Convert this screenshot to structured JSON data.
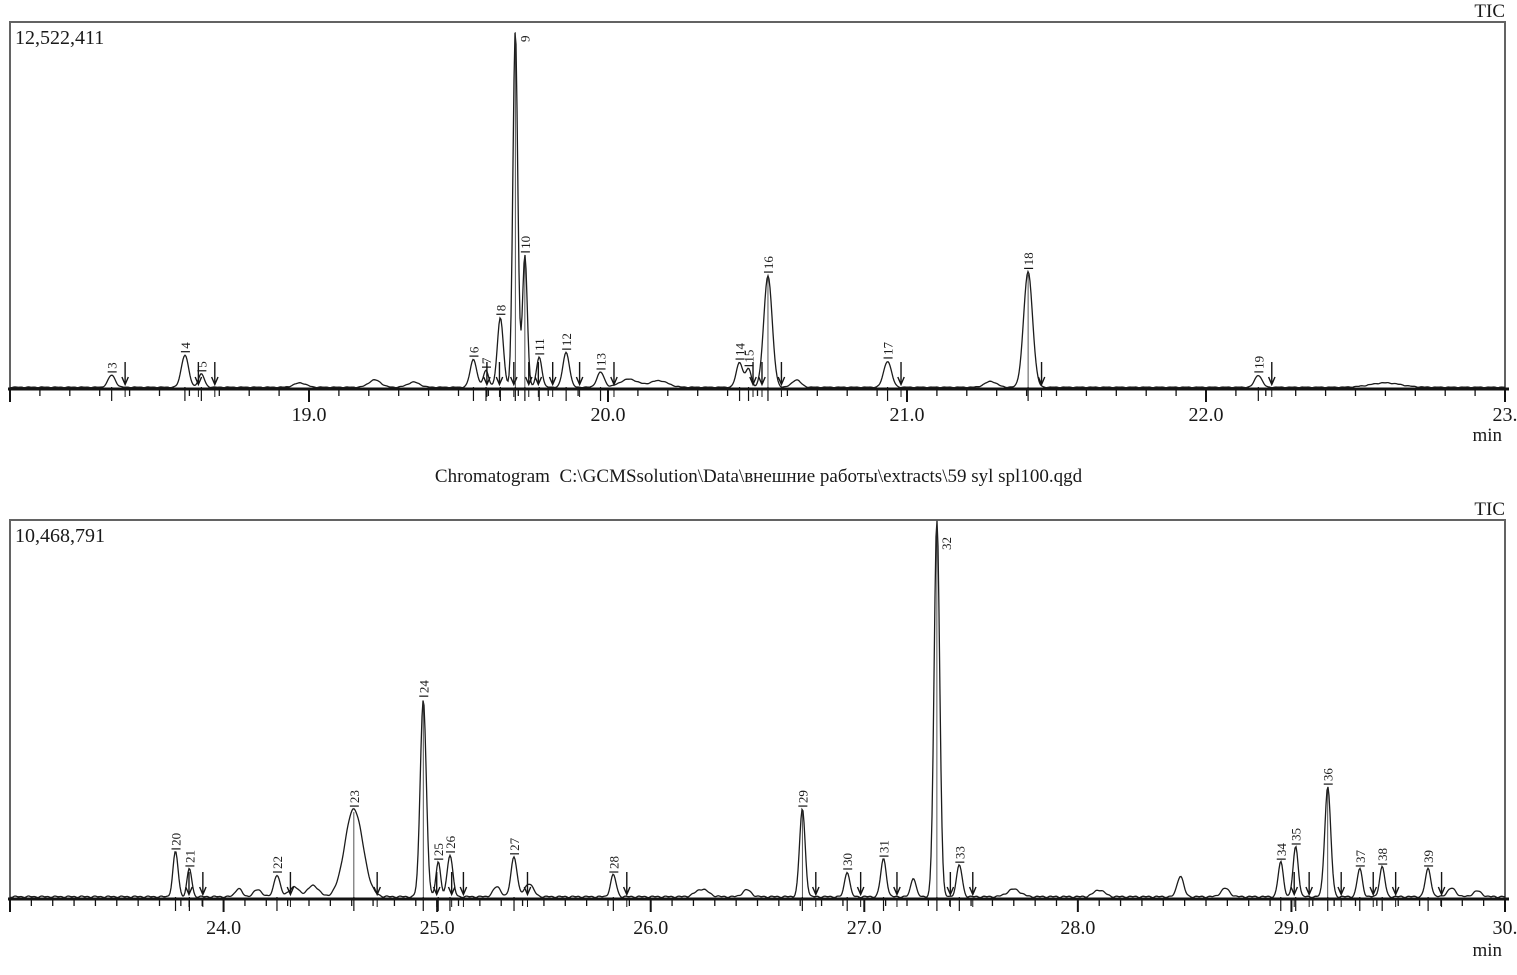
{
  "app": {
    "title_line": "Chromatogram  C:\\GCMSsolution\\Data\\внешние работы\\extracts\\59 syl spl100.qgd"
  },
  "chart_data": [
    {
      "type": "line",
      "panel": "upper-chromatogram",
      "signal_label": "TIC",
      "scale_max_label": "12,522,411",
      "scale_max_value": 12522411,
      "x_unit": "min",
      "x_range": [
        18.0,
        23.0
      ],
      "x_major_ticks": [
        19.0,
        20.0,
        21.0,
        22.0,
        23.0
      ],
      "x_major_tick_labels": [
        "19.0",
        "20.0",
        "21.0",
        "22.0",
        "23."
      ],
      "x_minor_step": 0.1,
      "grid": false,
      "peaks": [
        {
          "num": 3,
          "rt": 18.34,
          "h": 0.033,
          "w": 0.012
        },
        {
          "num": 4,
          "rt": 18.585,
          "h": 0.088,
          "w": 0.012
        },
        {
          "num": 5,
          "rt": 18.64,
          "h": 0.036,
          "w": 0.01
        },
        {
          "num": 6,
          "rt": 19.55,
          "h": 0.076,
          "w": 0.011
        },
        {
          "num": 7,
          "rt": 19.592,
          "h": 0.046,
          "w": 0.009
        },
        {
          "num": 8,
          "rt": 19.64,
          "h": 0.19,
          "w": 0.01
        },
        {
          "num": 9,
          "rt": 19.69,
          "h": 0.975,
          "w": 0.008
        },
        {
          "num": 10,
          "rt": 19.722,
          "h": 0.36,
          "w": 0.008
        },
        {
          "num": 11,
          "rt": 19.77,
          "h": 0.082,
          "w": 0.009
        },
        {
          "num": 12,
          "rt": 19.86,
          "h": 0.095,
          "w": 0.011
        },
        {
          "num": 13,
          "rt": 19.975,
          "h": 0.041,
          "w": 0.012
        },
        {
          "num": 14,
          "rt": 20.44,
          "h": 0.068,
          "w": 0.011
        },
        {
          "num": 15,
          "rt": 20.47,
          "h": 0.05,
          "w": 0.009
        },
        {
          "num": 16,
          "rt": 20.535,
          "h": 0.305,
          "w": 0.014
        },
        {
          "num": 17,
          "rt": 20.935,
          "h": 0.071,
          "w": 0.013
        },
        {
          "num": 18,
          "rt": 21.405,
          "h": 0.315,
          "w": 0.015
        },
        {
          "num": 19,
          "rt": 22.175,
          "h": 0.033,
          "w": 0.012
        }
      ],
      "minor_bumps": [
        {
          "rt": 18.97,
          "h": 0.012,
          "w": 0.02
        },
        {
          "rt": 19.22,
          "h": 0.02,
          "w": 0.02
        },
        {
          "rt": 19.35,
          "h": 0.014,
          "w": 0.02
        },
        {
          "rt": 20.07,
          "h": 0.022,
          "w": 0.03
        },
        {
          "rt": 20.17,
          "h": 0.018,
          "w": 0.03
        },
        {
          "rt": 20.63,
          "h": 0.02,
          "w": 0.015
        },
        {
          "rt": 21.28,
          "h": 0.016,
          "w": 0.02
        },
        {
          "rt": 22.6,
          "h": 0.012,
          "w": 0.05
        }
      ]
    },
    {
      "type": "line",
      "panel": "lower-chromatogram",
      "signal_label": "TIC",
      "scale_max_label": "10,468,791",
      "scale_max_value": 10468791,
      "x_unit": "min",
      "x_range": [
        23.0,
        30.0
      ],
      "x_major_ticks": [
        24.0,
        25.0,
        26.0,
        27.0,
        28.0,
        29.0,
        30.0
      ],
      "x_major_tick_labels": [
        "24.0",
        "25.0",
        "26.0",
        "27.0",
        "28.0",
        "29.0",
        "30."
      ],
      "x_minor_step": 0.1,
      "grid": false,
      "peaks": [
        {
          "num": 20,
          "rt": 23.775,
          "h": 0.119,
          "w": 0.012
        },
        {
          "num": 21,
          "rt": 23.84,
          "h": 0.074,
          "w": 0.011
        },
        {
          "num": 22,
          "rt": 24.25,
          "h": 0.058,
          "w": 0.014
        },
        {
          "num": 23,
          "rt": 24.61,
          "h": 0.232,
          "w": 0.042
        },
        {
          "num": 24,
          "rt": 24.935,
          "h": 0.522,
          "w": 0.014
        },
        {
          "num": 25,
          "rt": 25.005,
          "h": 0.092,
          "w": 0.011
        },
        {
          "num": 26,
          "rt": 25.06,
          "h": 0.111,
          "w": 0.013
        },
        {
          "num": 27,
          "rt": 25.36,
          "h": 0.106,
          "w": 0.014
        },
        {
          "num": 28,
          "rt": 25.825,
          "h": 0.058,
          "w": 0.013
        },
        {
          "num": 29,
          "rt": 26.71,
          "h": 0.232,
          "w": 0.013
        },
        {
          "num": 30,
          "rt": 26.92,
          "h": 0.066,
          "w": 0.012
        },
        {
          "num": 31,
          "rt": 27.09,
          "h": 0.1,
          "w": 0.013
        },
        {
          "num": 32,
          "rt": 27.34,
          "h": 1.0,
          "w": 0.013
        },
        {
          "num": 33,
          "rt": 27.445,
          "h": 0.084,
          "w": 0.013
        },
        {
          "num": 34,
          "rt": 28.95,
          "h": 0.092,
          "w": 0.012
        },
        {
          "num": 35,
          "rt": 29.02,
          "h": 0.132,
          "w": 0.012
        },
        {
          "num": 36,
          "rt": 29.17,
          "h": 0.29,
          "w": 0.014
        },
        {
          "num": 37,
          "rt": 29.32,
          "h": 0.074,
          "w": 0.012
        },
        {
          "num": 38,
          "rt": 29.425,
          "h": 0.079,
          "w": 0.012
        },
        {
          "num": 39,
          "rt": 29.64,
          "h": 0.074,
          "w": 0.013
        }
      ],
      "minor_bumps": [
        {
          "rt": 24.07,
          "h": 0.022,
          "w": 0.015
        },
        {
          "rt": 24.16,
          "h": 0.018,
          "w": 0.02
        },
        {
          "rt": 24.33,
          "h": 0.025,
          "w": 0.025
        },
        {
          "rt": 24.42,
          "h": 0.03,
          "w": 0.025
        },
        {
          "rt": 25.28,
          "h": 0.026,
          "w": 0.018
        },
        {
          "rt": 25.43,
          "h": 0.035,
          "w": 0.02
        },
        {
          "rt": 26.24,
          "h": 0.02,
          "w": 0.03
        },
        {
          "rt": 26.45,
          "h": 0.018,
          "w": 0.02
        },
        {
          "rt": 27.23,
          "h": 0.05,
          "w": 0.012
        },
        {
          "rt": 27.7,
          "h": 0.02,
          "w": 0.03
        },
        {
          "rt": 28.1,
          "h": 0.018,
          "w": 0.025
        },
        {
          "rt": 28.48,
          "h": 0.055,
          "w": 0.015
        },
        {
          "rt": 28.69,
          "h": 0.022,
          "w": 0.02
        },
        {
          "rt": 29.75,
          "h": 0.022,
          "w": 0.02
        },
        {
          "rt": 29.87,
          "h": 0.015,
          "w": 0.02
        }
      ]
    }
  ]
}
